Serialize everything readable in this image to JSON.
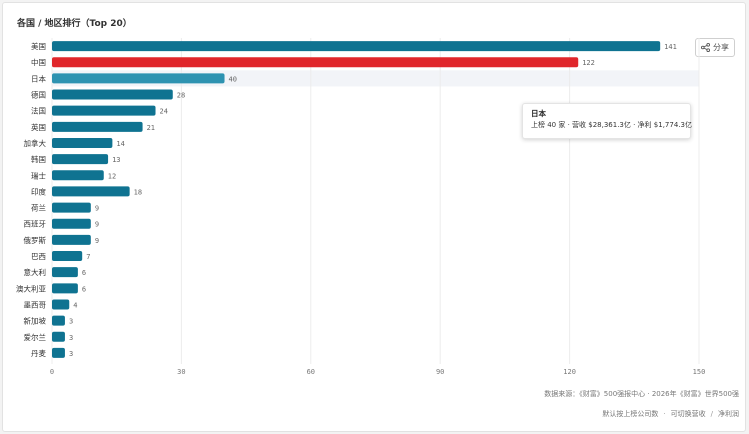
{
  "title": "各国 / 地区排行（Top 20）",
  "share_label": "分享",
  "tooltip": {
    "title": "日本",
    "body": "上榜 40 家 · 营收 $28,361.3亿 · 净利 $1,774.3亿"
  },
  "source_note": "数据来源：《财富》500强报中心 · 2026年《财富》世界500强",
  "metric_options": [
    "默认按上榜公司数",
    "可切换营收",
    "净利润"
  ],
  "colors": {
    "bar": "#0f7391",
    "highlight_china": "#e0262b",
    "hover": "#2e93b1",
    "hover_band": "#f2f4f8"
  },
  "chart_data": {
    "type": "bar",
    "orientation": "horizontal",
    "categories": [
      "美国",
      "中国",
      "日本",
      "德国",
      "法国",
      "英国",
      "加拿大",
      "韩国",
      "瑞士",
      "印度",
      "荷兰",
      "西班牙",
      "俄罗斯",
      "巴西",
      "意大利",
      "澳大利亚",
      "墨西哥",
      "新加坡",
      "爱尔兰",
      "丹麦"
    ],
    "values": [
      141,
      122,
      40,
      28,
      24,
      21,
      14,
      13,
      12,
      18,
      9,
      9,
      9,
      7,
      6,
      6,
      4,
      3,
      3,
      3
    ],
    "xlim": [
      0,
      150
    ],
    "xticks": [
      0,
      30,
      60,
      90,
      120,
      150
    ],
    "highlighted": "中国",
    "hovered": "日本",
    "grid": true
  }
}
